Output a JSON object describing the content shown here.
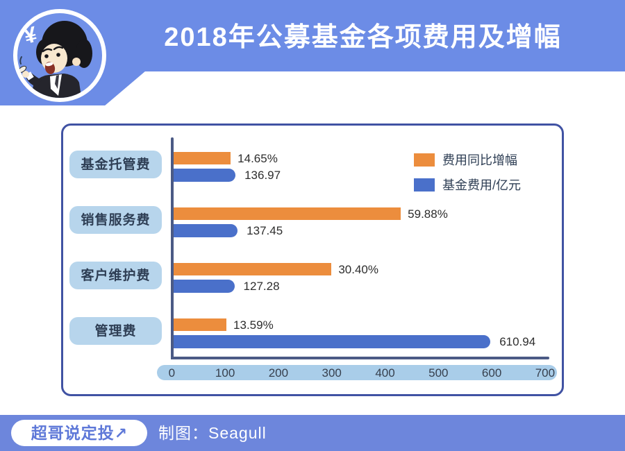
{
  "header": {
    "title": "2018年公募基金各项费用及增幅",
    "avatar_symbol": "¥"
  },
  "chart_data": {
    "type": "bar",
    "orientation": "horizontal",
    "title": "2018年公募基金各项费用及增幅",
    "categories": [
      "基金托管费",
      "销售服务费",
      "客户维护费",
      "管理费"
    ],
    "series": [
      {
        "name": "费用同比增幅",
        "unit": "%",
        "color": "#EC8D3D",
        "values": [
          14.65,
          59.88,
          30.4,
          13.59
        ]
      },
      {
        "name": "基金费用/亿元",
        "unit": "亿元",
        "color": "#4A70CA",
        "values": [
          136.97,
          137.45,
          127.28,
          610.94
        ]
      }
    ],
    "rows": [
      {
        "label": "基金托管费",
        "pct_label": "14.65%",
        "pct_extent": 107,
        "fee_label": "136.97",
        "fee_extent": 116
      },
      {
        "label": "销售服务费",
        "pct_label": "59.88%",
        "pct_extent": 426,
        "fee_label": "137.45",
        "fee_extent": 120
      },
      {
        "label": "客户维护费",
        "pct_label": "30.40%",
        "pct_extent": 296,
        "fee_label": "127.28",
        "fee_extent": 114
      },
      {
        "label": "管理费",
        "pct_label": "13.59%",
        "pct_extent": 99,
        "fee_label": "610.94",
        "fee_extent": 594
      }
    ],
    "legend": [
      {
        "label": "费用同比增幅",
        "color": "#EC8D3D"
      },
      {
        "label": "基金费用/亿元",
        "color": "#4A70CA"
      }
    ],
    "x_axis": {
      "min": 0,
      "max": 700,
      "ticks": [
        "0",
        "100",
        "200",
        "300",
        "400",
        "500",
        "600",
        "700"
      ],
      "grid": false,
      "legend_position": "top-right"
    }
  },
  "footer": {
    "brand": "超哥说定投",
    "brand_arrow": "↗",
    "credit": "制图：Seagull"
  },
  "colors": {
    "header_blue": "#6C8CE6",
    "footer_blue": "#6D86DC",
    "bar_orange": "#EC8D3D",
    "bar_blue": "#4A70CA",
    "category_pill_blue": "#B7D5EC",
    "axis_band_blue": "#A9CDE9",
    "axis_line": "#4B5A85",
    "panel_border": "#4052A3",
    "text_dark": "#2E3E54"
  }
}
